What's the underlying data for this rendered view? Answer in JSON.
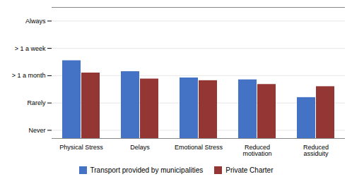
{
  "chart_data": {
    "type": "bar",
    "categories": [
      "Physical Stress",
      "Delays",
      "Emotional Stress",
      "Reduced\nmotivation",
      "Reduced\nassiduity"
    ],
    "series": [
      {
        "name": "Transport provided by municipalities",
        "color": "#4472C4",
        "values": [
          3.55,
          3.15,
          2.92,
          2.85,
          2.2
        ]
      },
      {
        "name": "Private Charter",
        "color": "#943634",
        "values": [
          3.1,
          2.88,
          2.82,
          2.68,
          2.6
        ]
      }
    ],
    "ylim": [
      0.7,
      5.5
    ],
    "yticks": [
      {
        "value": 1,
        "label": "Never"
      },
      {
        "value": 2,
        "label": "Rarely"
      },
      {
        "value": 3,
        "label": "> 1 a month"
      },
      {
        "value": 4,
        "label": "> 1 a week"
      },
      {
        "value": 5,
        "label": "Always"
      }
    ],
    "grid": true,
    "legend": "bottom"
  }
}
